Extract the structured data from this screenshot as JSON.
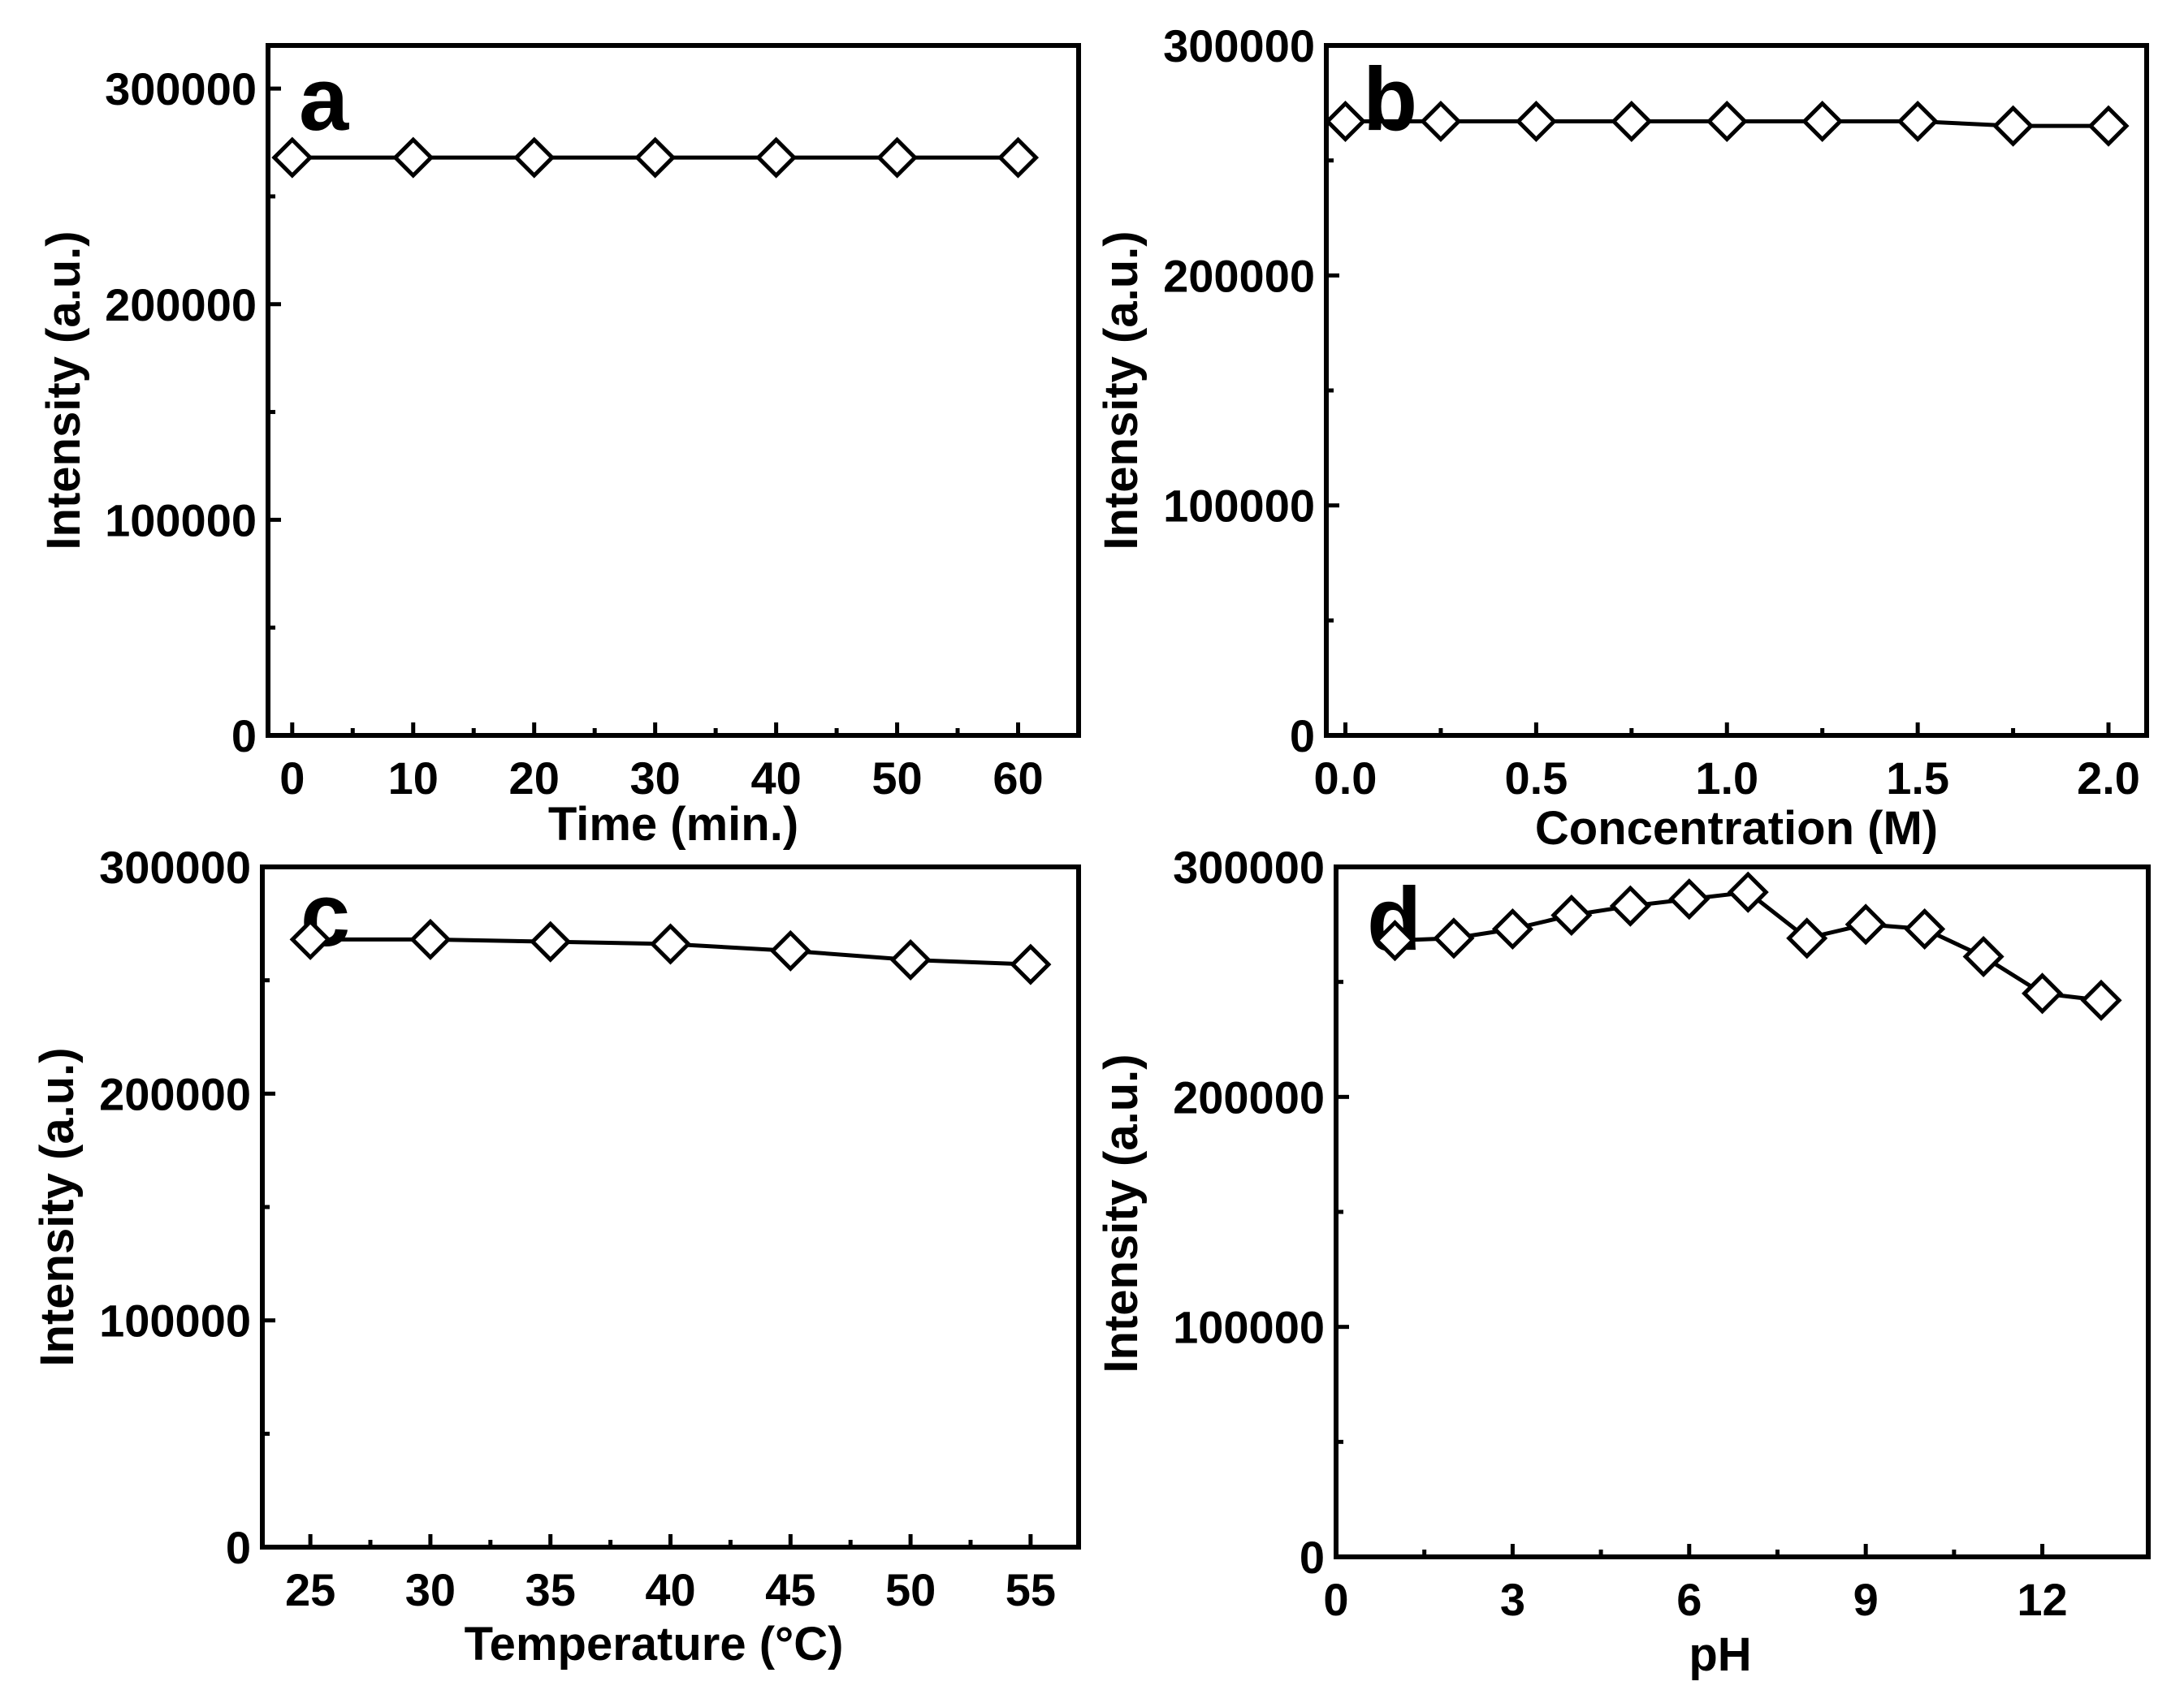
{
  "chart_data": [
    {
      "panel": "a",
      "type": "line",
      "xlabel": "Time (min.)",
      "ylabel": "Intensity (a.u.)",
      "xlim": [
        -2,
        65
      ],
      "ylim": [
        0,
        320000
      ],
      "xticks": [
        0,
        10,
        20,
        30,
        40,
        50,
        60
      ],
      "xtick_labels": [
        "0",
        "10",
        "20",
        "30",
        "40",
        "50",
        "60"
      ],
      "yticks": [
        0,
        100000,
        200000,
        300000
      ],
      "ytick_labels": [
        "0",
        "100000",
        "200000",
        "300000"
      ],
      "x": [
        0,
        10,
        20,
        30,
        40,
        50,
        60
      ],
      "values": [
        268000,
        268000,
        268000,
        268000,
        268000,
        268000,
        268000
      ],
      "marker": "open-diamond"
    },
    {
      "panel": "b",
      "type": "line",
      "xlabel": "Concentration (M)",
      "ylabel": "Intensity (a.u.)",
      "xlim": [
        -0.05,
        2.1
      ],
      "ylim": [
        0,
        300000
      ],
      "xticks": [
        0.0,
        0.5,
        1.0,
        1.5,
        2.0
      ],
      "xtick_labels": [
        "0.0",
        "0.5",
        "1.0",
        "1.5",
        "2.0"
      ],
      "yticks": [
        0,
        100000,
        200000,
        300000
      ],
      "ytick_labels": [
        "0",
        "100000",
        "200000",
        "300000"
      ],
      "x": [
        0.0,
        0.25,
        0.5,
        0.75,
        1.0,
        1.25,
        1.5,
        1.75,
        2.0
      ],
      "values": [
        267000,
        267000,
        267000,
        267000,
        267000,
        267000,
        267000,
        265000,
        265000
      ],
      "marker": "open-diamond"
    },
    {
      "panel": "c",
      "type": "line",
      "xlabel": "Temperature (°C)",
      "ylabel": "Intensity (a.u.)",
      "xlim": [
        23,
        57
      ],
      "ylim": [
        0,
        300000
      ],
      "xticks": [
        25,
        30,
        35,
        40,
        45,
        50,
        55
      ],
      "xtick_labels": [
        "25",
        "30",
        "35",
        "40",
        "45",
        "50",
        "55"
      ],
      "yticks": [
        0,
        100000,
        200000,
        300000
      ],
      "ytick_labels": [
        "0",
        "100000",
        "200000",
        "300000"
      ],
      "x": [
        25,
        30,
        35,
        40,
        45,
        50,
        55
      ],
      "values": [
        268000,
        268000,
        267000,
        266000,
        263000,
        259000,
        257000
      ],
      "marker": "open-diamond"
    },
    {
      "panel": "d",
      "type": "line",
      "xlabel": "pH",
      "ylabel": "Intensity (a.u.)",
      "xlim": [
        0,
        13.8
      ],
      "ylim": [
        0,
        300000
      ],
      "xticks": [
        0,
        3,
        6,
        9,
        12
      ],
      "xtick_labels": [
        "0",
        "3",
        "6",
        "9",
        "12"
      ],
      "yticks": [
        0,
        100000,
        200000,
        300000
      ],
      "ytick_labels": [
        "0",
        "100000",
        "200000",
        "300000"
      ],
      "x": [
        1,
        2,
        3,
        4,
        5,
        6,
        7,
        8,
        9,
        10,
        11,
        12,
        13
      ],
      "values": [
        268000,
        269000,
        273000,
        279000,
        283000,
        286000,
        289000,
        269000,
        275000,
        273000,
        261000,
        245000,
        242000
      ],
      "marker": "open-diamond"
    }
  ]
}
